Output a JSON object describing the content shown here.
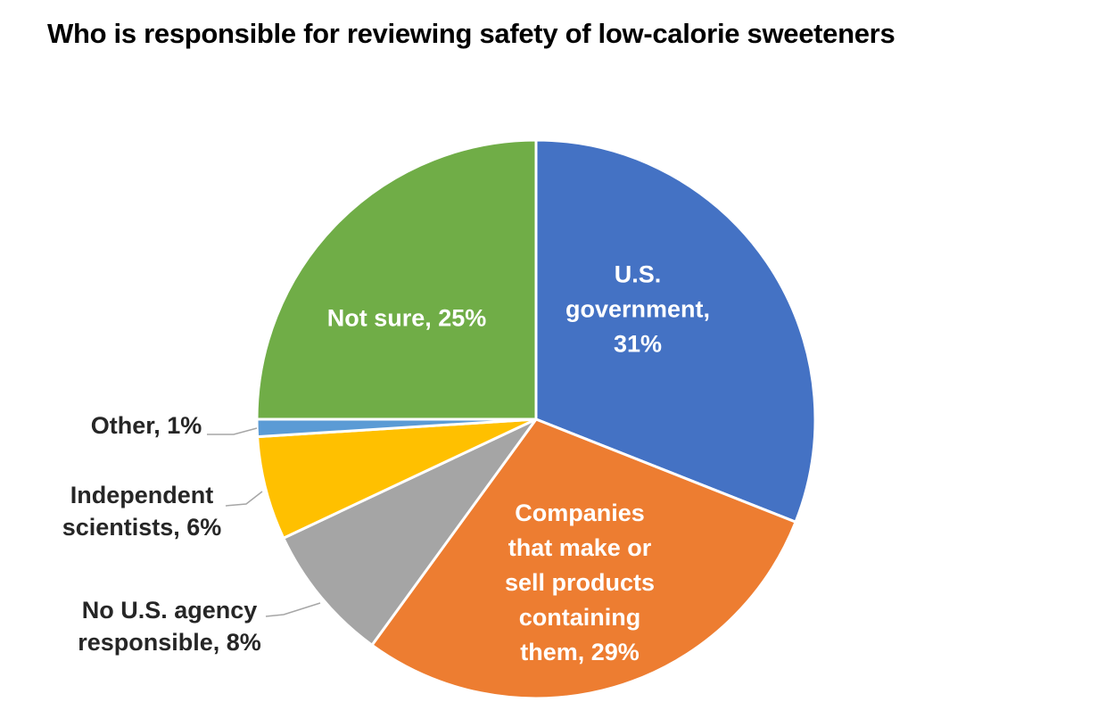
{
  "title": "Who is responsible for reviewing safety of low-calorie sweeteners",
  "chart_data": {
    "type": "pie",
    "title": "Who is responsible for reviewing safety of low-calorie sweeteners",
    "direction": "clockwise",
    "start_angle_deg": 0,
    "legend": "none",
    "slice_border_color": "#FFFFFF",
    "leader_line_color": "#A6A6A6",
    "slices": [
      {
        "label": "U.S. government",
        "value": 31,
        "color": "#4472C4",
        "label_display": "U.S.\ngovernment,\n31%",
        "label_position": "inside",
        "text_color": "#FFFFFF"
      },
      {
        "label": "Companies that make or sell products containing them",
        "value": 29,
        "color": "#ED7D31",
        "label_display": "Companies\nthat make or\nsell products\ncontaining\nthem, 29%",
        "label_position": "inside",
        "text_color": "#FFFFFF"
      },
      {
        "label": "No U.S. agency responsible",
        "value": 8,
        "color": "#A5A5A5",
        "label_display": "No U.S. agency\nresponsible, 8%",
        "label_position": "outside",
        "text_color": "#262626"
      },
      {
        "label": "Independent scientists",
        "value": 6,
        "color": "#FFC000",
        "label_display": "Independent\nscientists, 6%",
        "label_position": "outside",
        "text_color": "#262626"
      },
      {
        "label": "Other",
        "value": 1,
        "color": "#5B9BD5",
        "label_display": "Other, 1%",
        "label_position": "outside",
        "text_color": "#262626"
      },
      {
        "label": "Not sure",
        "value": 25,
        "color": "#70AD47",
        "label_display": "Not sure, 25%",
        "label_position": "inside",
        "text_color": "#FFFFFF"
      }
    ]
  }
}
